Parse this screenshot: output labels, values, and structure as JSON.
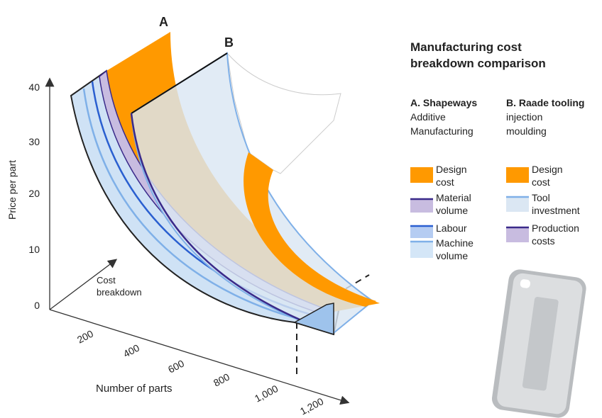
{
  "legend": {
    "title_lines": [
      "Manufacturing cost",
      "breakdown comparison"
    ],
    "columns": [
      {
        "heading": "A. Shapeways",
        "subheading_lines": [
          "Additive",
          "Manufacturing"
        ],
        "items": [
          {
            "label_lines": [
              "Design",
              "cost"
            ]
          },
          {
            "label_lines": [
              "Material",
              "volume"
            ]
          },
          {
            "label_lines": [
              "Labour"
            ]
          },
          {
            "label_lines": [
              "Machine",
              "volume"
            ]
          }
        ]
      },
      {
        "heading": "B. Raade tooling",
        "subheading_lines": [
          "injection",
          "moulding"
        ],
        "items": [
          {
            "label_lines": [
              "Design",
              "cost"
            ]
          },
          {
            "label_lines": [
              "Tool",
              "investment"
            ]
          },
          {
            "label_lines": [
              "Production",
              "costs"
            ]
          }
        ]
      }
    ]
  },
  "diagram": {
    "surface_labels": [
      "A",
      "B"
    ],
    "y_axis": {
      "label": "Price per part",
      "ticks": [
        "0",
        "10",
        "20",
        "30",
        "40"
      ]
    },
    "depth_axis": {
      "label_lines": [
        "Cost",
        "breakdown"
      ]
    },
    "x_axis": {
      "label": "Number of parts",
      "ticks": [
        "200",
        "400",
        "600",
        "800",
        "1,000",
        "1,200"
      ]
    }
  }
}
